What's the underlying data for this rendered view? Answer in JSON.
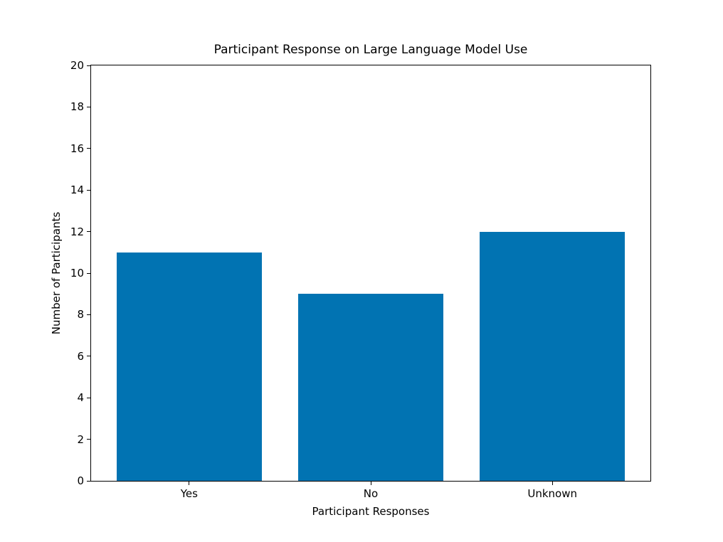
{
  "chart_data": {
    "type": "bar",
    "title": "Participant Response on Large Language Model Use",
    "xlabel": "Participant Responses",
    "ylabel": "Number of Participants",
    "categories": [
      "Yes",
      "No",
      "Unknown"
    ],
    "values": [
      11,
      9,
      12
    ],
    "ylim": [
      0,
      20
    ],
    "ytick_step": 2,
    "ytick_labels": [
      "0",
      "2",
      "4",
      "6",
      "8",
      "10",
      "12",
      "14",
      "16",
      "18",
      "20"
    ],
    "bar_color": "#0173b2",
    "bar_width_fraction": 0.8,
    "grid": "off",
    "legend": "none",
    "frame": "box"
  }
}
